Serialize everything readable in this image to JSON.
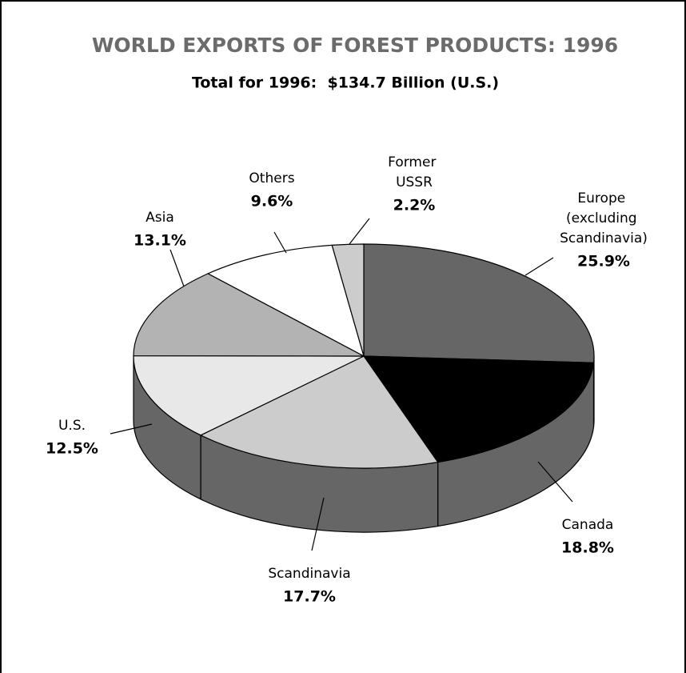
{
  "chart_data": {
    "type": "pie3d",
    "title": "WORLD EXPORTS OF FOREST PRODUCTS: 1996",
    "subtitle": "Total for 1996:  $134.7 Billion (U.S.)",
    "categories": [
      "Europe (excluding Scandinavia)",
      "Canada",
      "Scandinavia",
      "U.S.",
      "Asia",
      "Others",
      "Former USSR"
    ],
    "values": [
      25.9,
      18.8,
      17.7,
      12.5,
      13.1,
      9.6,
      2.2
    ],
    "value_labels": [
      "25.9%",
      "18.8%",
      "17.7%",
      "12.5%",
      "13.1%",
      "9.6%",
      "2.2%"
    ],
    "colors": [
      "#666666",
      "#000000",
      "#cccccc",
      "#e8e8e8",
      "#b3b3b3",
      "#ffffff",
      "#cccccc"
    ],
    "side_color": "#666666"
  }
}
